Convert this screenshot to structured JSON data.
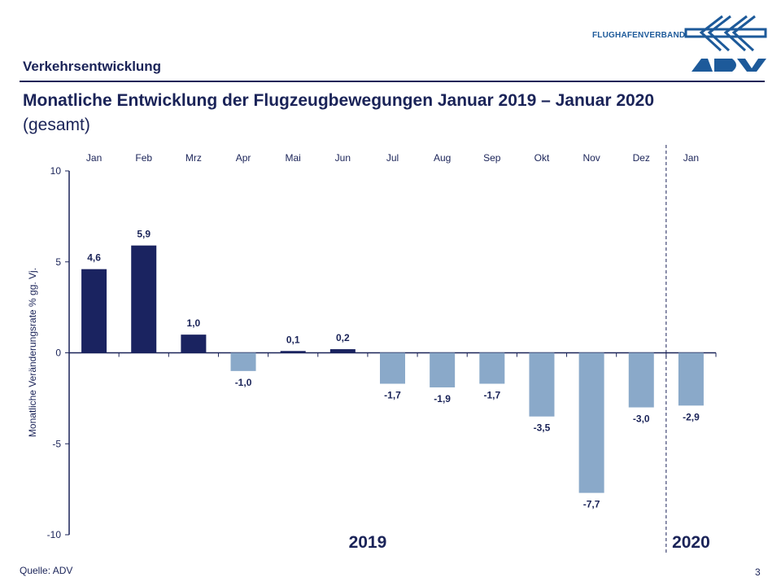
{
  "header": {
    "section": "Verkehrsentwicklung",
    "title": "Monatliche Entwicklung der Flugzeugbewegungen Januar 2019 – Januar 2020",
    "subtitle": "(gesamt)",
    "logo_text": "FLUGHAFENVERBAND",
    "logo_mark": "ADV"
  },
  "footer": {
    "source": "Quelle: ADV",
    "page": "3"
  },
  "colors": {
    "positive": "#1a2360",
    "negative": "#8aa9c9",
    "text": "#1a2358",
    "logo": "#1d5a9a"
  },
  "chart_data": {
    "type": "bar",
    "categories": [
      "Jan",
      "Feb",
      "Mrz",
      "Apr",
      "Mai",
      "Jun",
      "Jul",
      "Aug",
      "Sep",
      "Okt",
      "Nov",
      "Dez",
      "Jan"
    ],
    "values": [
      4.6,
      5.9,
      1.0,
      -1.0,
      0.1,
      0.2,
      -1.7,
      -1.9,
      -1.7,
      -3.5,
      -7.7,
      -3.0,
      -2.9
    ],
    "data_labels": [
      "4,6",
      "5,9",
      "1,0",
      "-1,0",
      "0,1",
      "0,2",
      "-1,7",
      "-1,9",
      "-1,7",
      "-3,5",
      "-7,7",
      "-3,0",
      "-2,9"
    ],
    "ylabel": "Monatliche Veränderungsrate % gg. Vj.",
    "ylim": [
      -10,
      10
    ],
    "yticks": [
      "10",
      "5",
      "0",
      "-5",
      "-10"
    ],
    "ytick_values": [
      10,
      5,
      0,
      -5,
      -10
    ],
    "year_groups": [
      {
        "label": "2019",
        "from": 0,
        "to": 11
      },
      {
        "label": "2020",
        "from": 12,
        "to": 12
      }
    ],
    "grid": false,
    "legend": "none"
  }
}
